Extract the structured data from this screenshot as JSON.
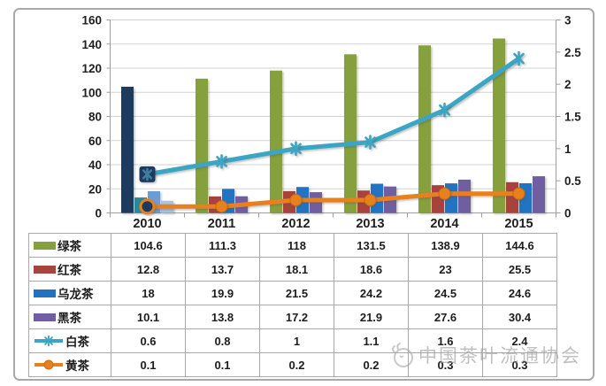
{
  "chart_data": {
    "type": "bar",
    "subtype": "grouped-bars-with-lines-combo",
    "title": "",
    "categories": [
      "2010",
      "2011",
      "2012",
      "2013",
      "2014",
      "2015"
    ],
    "series": [
      {
        "key": "green-tea",
        "name": "绿茶",
        "type": "bar",
        "axis": "left",
        "color": "#85A03E",
        "first_point_color": "#1E3A5F",
        "values": [
          104.6,
          111.3,
          118,
          131.5,
          138.9,
          144.6
        ]
      },
      {
        "key": "red-tea",
        "name": "红茶",
        "type": "bar",
        "axis": "left",
        "color": "#A8433E",
        "first_point_color": "#2F8796",
        "values": [
          12.8,
          13.7,
          18.1,
          18.6,
          23,
          25.5
        ]
      },
      {
        "key": "oolong-tea",
        "name": "乌龙茶",
        "type": "bar",
        "axis": "left",
        "color": "#2173C2",
        "first_point_color": "#6D9CD4",
        "values": [
          18,
          19.9,
          21.5,
          24.2,
          24.5,
          24.6
        ]
      },
      {
        "key": "dark-tea",
        "name": "黑茶",
        "type": "bar",
        "axis": "left",
        "color": "#6F5EA0",
        "first_point_color": "#A9C3E2",
        "values": [
          10.1,
          13.8,
          17.2,
          21.9,
          27.6,
          30.4
        ]
      },
      {
        "key": "white-tea",
        "name": "白茶",
        "type": "line",
        "axis": "right",
        "color": "#3BA6C4",
        "marker": "asterisk",
        "first_marker_color": "#1E3A5F",
        "values": [
          0.6,
          0.8,
          1,
          1.1,
          1.6,
          2.4
        ]
      },
      {
        "key": "yellow-tea",
        "name": "黄茶",
        "type": "line",
        "axis": "right",
        "color": "#E8801F",
        "marker": "circle",
        "first_marker_color": "#1E3A5F",
        "values": [
          0.1,
          0.1,
          0.2,
          0.2,
          0.3,
          0.3
        ]
      }
    ],
    "left_axis": {
      "min": 0,
      "max": 160,
      "step": 20,
      "tick_labels": [
        "0",
        "20",
        "40",
        "60",
        "80",
        "100",
        "120",
        "140",
        "160"
      ]
    },
    "right_axis": {
      "min": 0,
      "max": 3,
      "step": 0.5,
      "tick_labels": [
        "0",
        "0.5",
        "1",
        "1.5",
        "2",
        "2.5",
        "3"
      ]
    },
    "grid": "horizontal-on",
    "legend_position": "data-table-left-column",
    "data_table_shown": true
  },
  "watermark": {
    "text": "中国茶叶流通协会"
  }
}
